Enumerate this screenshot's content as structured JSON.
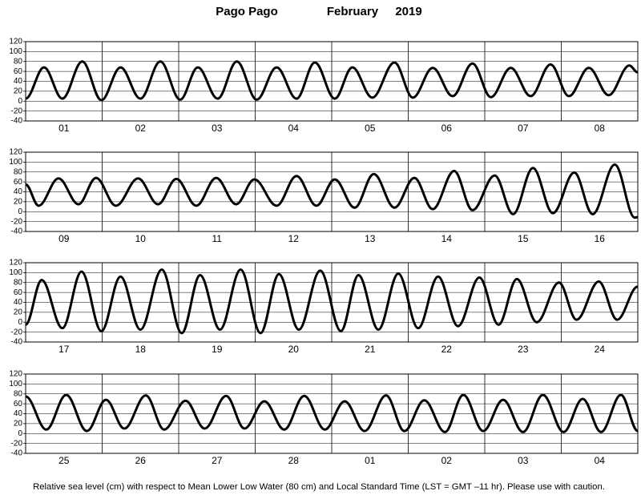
{
  "header": {
    "location": "Pago Pago",
    "month": "February",
    "year": "2019"
  },
  "footer": "Relative sea level (cm) with respect to Mean Lower Low Water (80 cm) and Local Standard Time (LST = GMT –11 hr). Please use with caution.",
  "chart_data": [
    {
      "type": "line",
      "categories": [
        "01",
        "02",
        "03",
        "04",
        "05",
        "06",
        "07",
        "08"
      ],
      "x": [
        0,
        0.24,
        0.48,
        0.74,
        0.99,
        1.24,
        1.5,
        1.76,
        2.02,
        2.25,
        2.51,
        2.76,
        3.02,
        3.28,
        3.54,
        3.78,
        4.04,
        4.27,
        4.53,
        4.82,
        5.06,
        5.32,
        5.58,
        5.84,
        6.08,
        6.34,
        6.6,
        6.86,
        7.1,
        7.36,
        7.62,
        7.89,
        8
      ],
      "values": [
        5,
        68,
        5,
        80,
        2,
        68,
        5,
        80,
        3,
        68,
        5,
        80,
        3,
        68,
        5,
        78,
        5,
        68,
        7,
        78,
        7,
        67,
        10,
        76,
        8,
        67,
        10,
        74,
        10,
        67,
        12,
        72,
        58
      ],
      "color": "#000000",
      "xlim": [
        0,
        8
      ],
      "ylim": [
        -40,
        120
      ],
      "yticks": [
        -40,
        -20,
        0,
        20,
        40,
        60,
        80,
        100,
        120
      ],
      "grid": true
    },
    {
      "type": "line",
      "categories": [
        "09",
        "10",
        "11",
        "12",
        "13",
        "14",
        "15",
        "16"
      ],
      "x": [
        0,
        0.17,
        0.43,
        0.69,
        0.92,
        1.18,
        1.47,
        1.73,
        1.97,
        2.23,
        2.49,
        2.75,
        2.99,
        3.28,
        3.54,
        3.8,
        4.04,
        4.3,
        4.55,
        4.82,
        5.08,
        5.32,
        5.6,
        5.84,
        6.13,
        6.37,
        6.63,
        6.89,
        7.17,
        7.41,
        7.7,
        7.96,
        8
      ],
      "values": [
        55,
        12,
        67,
        15,
        68,
        12,
        67,
        15,
        66,
        12,
        68,
        15,
        65,
        12,
        72,
        12,
        65,
        8,
        76,
        8,
        68,
        5,
        82,
        3,
        73,
        -5,
        88,
        -3,
        79,
        -5,
        95,
        -12,
        -11
      ],
      "color": "#000000",
      "xlim": [
        0,
        8
      ],
      "ylim": [
        -40,
        120
      ],
      "yticks": [
        -40,
        -20,
        0,
        20,
        40,
        60,
        80,
        100,
        120
      ],
      "grid": true
    },
    {
      "type": "line",
      "categories": [
        "17",
        "18",
        "19",
        "20",
        "21",
        "22",
        "23",
        "24"
      ],
      "x": [
        0,
        0.21,
        0.48,
        0.73,
        0.99,
        1.24,
        1.5,
        1.78,
        2.04,
        2.28,
        2.54,
        2.81,
        3.07,
        3.31,
        3.57,
        3.85,
        4.12,
        4.35,
        4.61,
        4.87,
        5.13,
        5.39,
        5.65,
        5.93,
        6.18,
        6.42,
        6.68,
        6.97,
        7.2,
        7.49,
        7.73,
        8
      ],
      "values": [
        -5,
        85,
        -12,
        102,
        -18,
        92,
        -15,
        106,
        -22,
        95,
        -15,
        106,
        -22,
        97,
        -15,
        104,
        -18,
        95,
        -15,
        98,
        -12,
        92,
        -8,
        90,
        -5,
        87,
        0,
        80,
        5,
        82,
        5,
        72
      ],
      "color": "#000000",
      "xlim": [
        0,
        8
      ],
      "ylim": [
        -40,
        120
      ],
      "yticks": [
        -40,
        -20,
        0,
        20,
        40,
        60,
        80,
        100,
        120
      ],
      "grid": true
    },
    {
      "type": "line",
      "categories": [
        "25",
        "26",
        "27",
        "28",
        "01",
        "02",
        "03",
        "04"
      ],
      "x": [
        0,
        0.27,
        0.53,
        0.8,
        1.05,
        1.29,
        1.57,
        1.81,
        2.09,
        2.34,
        2.62,
        2.86,
        3.12,
        3.38,
        3.64,
        3.91,
        4.17,
        4.43,
        4.71,
        4.95,
        5.21,
        5.48,
        5.72,
        5.98,
        6.24,
        6.5,
        6.76,
        7.03,
        7.28,
        7.52,
        7.78,
        8
      ],
      "values": [
        75,
        8,
        78,
        5,
        68,
        10,
        77,
        8,
        66,
        10,
        76,
        10,
        65,
        8,
        76,
        8,
        65,
        5,
        77,
        5,
        67,
        3,
        78,
        5,
        68,
        3,
        78,
        3,
        70,
        3,
        78,
        5
      ],
      "color": "#000000",
      "xlim": [
        0,
        8
      ],
      "ylim": [
        -40,
        120
      ],
      "yticks": [
        -40,
        -20,
        0,
        20,
        40,
        60,
        80,
        100,
        120
      ],
      "grid": true
    }
  ]
}
